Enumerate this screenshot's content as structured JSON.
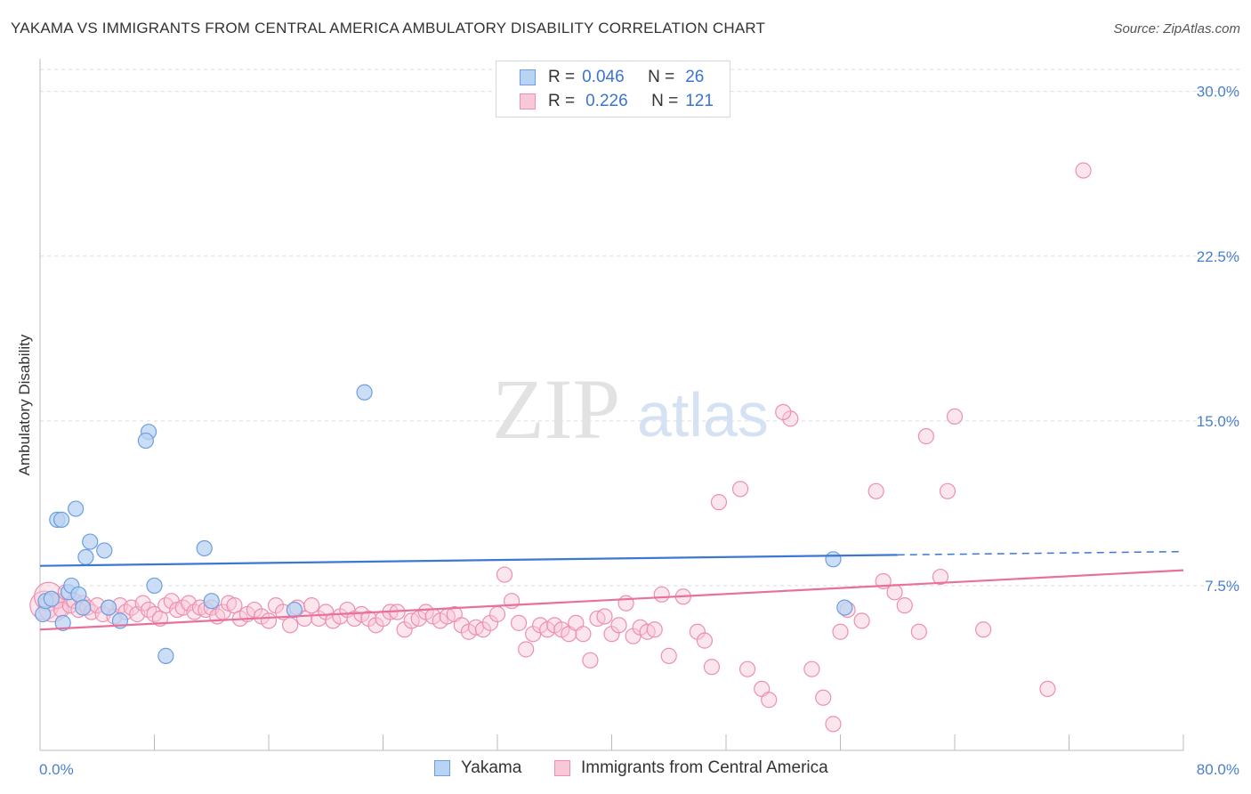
{
  "title": "YAKAMA VS IMMIGRANTS FROM CENTRAL AMERICA AMBULATORY DISABILITY CORRELATION CHART",
  "source": "Source: ZipAtlas.com",
  "watermark": {
    "zip": "ZIP",
    "atlas": "atlas"
  },
  "legend": {
    "rows": [
      {
        "r_label": "R =",
        "r_value": "0.046",
        "n_label": "N =",
        "n_value": "26"
      },
      {
        "r_label": "R =",
        "r_value": "0.226",
        "n_label": "N =",
        "n_value": "121"
      }
    ]
  },
  "colors": {
    "yakama_fill": "#b9d3f3",
    "yakama_stroke": "#6b9fe0",
    "yakama_line": "#3b78d4",
    "ica_fill": "#f8c8d8",
    "ica_stroke": "#ee8fb0",
    "ica_line": "#e8709a",
    "axis_text": "#4a7fd0",
    "grid": "#dddddd"
  },
  "chart_data": {
    "type": "scatter",
    "title": "YAKAMA VS IMMIGRANTS FROM CENTRAL AMERICA AMBULATORY DISABILITY CORRELATION CHART",
    "xlabel": "",
    "ylabel": "Ambulatory Disability",
    "xlim": [
      0,
      80
    ],
    "ylim": [
      0,
      31
    ],
    "x_tick_labels": [
      "0.0%",
      "80.0%"
    ],
    "y_ticks": [
      7.5,
      15.0,
      22.5,
      30.0
    ],
    "y_tick_labels": [
      "7.5%",
      "15.0%",
      "22.5%",
      "30.0%"
    ],
    "grid": "horizontal dashed",
    "legend_position": "top-center",
    "series": [
      {
        "name": "Yakama",
        "trend": {
          "x0": 0,
          "y0": 8.4,
          "x1": 60,
          "y1": 8.9,
          "dashed_to": 80,
          "dashed_y": 9.05
        },
        "points": [
          [
            0.2,
            6.2
          ],
          [
            0.4,
            6.8
          ],
          [
            0.8,
            6.9
          ],
          [
            1.2,
            10.5
          ],
          [
            1.5,
            10.5
          ],
          [
            2.5,
            11.0
          ],
          [
            2.0,
            7.2
          ],
          [
            2.2,
            7.5
          ],
          [
            2.7,
            7.1
          ],
          [
            1.6,
            5.8
          ],
          [
            3.2,
            8.8
          ],
          [
            3.5,
            9.5
          ],
          [
            4.5,
            9.1
          ],
          [
            4.8,
            6.5
          ],
          [
            5.6,
            5.9
          ],
          [
            7.6,
            14.5
          ],
          [
            7.4,
            14.1
          ],
          [
            8.0,
            7.5
          ],
          [
            8.8,
            4.3
          ],
          [
            11.5,
            9.2
          ],
          [
            12.0,
            6.8
          ],
          [
            17.8,
            6.4
          ],
          [
            22.7,
            16.3
          ],
          [
            55.5,
            8.7
          ],
          [
            56.3,
            6.5
          ],
          [
            3.0,
            6.5
          ]
        ]
      },
      {
        "name": "Immigrants from Central America",
        "trend": {
          "x0": 0,
          "y0": 5.5,
          "x1": 80,
          "y1": 8.2
        },
        "points": [
          [
            0.3,
            6.6
          ],
          [
            0.6,
            7.0
          ],
          [
            0.9,
            6.5
          ],
          [
            1.2,
            6.8
          ],
          [
            1.5,
            6.4
          ],
          [
            1.8,
            7.2
          ],
          [
            2.1,
            6.6
          ],
          [
            2.4,
            6.8
          ],
          [
            2.7,
            6.4
          ],
          [
            3.0,
            6.7
          ],
          [
            3.3,
            6.5
          ],
          [
            3.6,
            6.3
          ],
          [
            4.0,
            6.6
          ],
          [
            4.4,
            6.2
          ],
          [
            4.8,
            6.5
          ],
          [
            5.2,
            6.1
          ],
          [
            5.6,
            6.6
          ],
          [
            6.0,
            6.3
          ],
          [
            6.4,
            6.5
          ],
          [
            6.8,
            6.2
          ],
          [
            7.2,
            6.7
          ],
          [
            7.6,
            6.4
          ],
          [
            8.0,
            6.2
          ],
          [
            8.4,
            6.0
          ],
          [
            8.8,
            6.6
          ],
          [
            9.2,
            6.8
          ],
          [
            9.6,
            6.4
          ],
          [
            10.0,
            6.5
          ],
          [
            10.4,
            6.7
          ],
          [
            10.8,
            6.3
          ],
          [
            11.2,
            6.5
          ],
          [
            11.6,
            6.4
          ],
          [
            12.0,
            6.5
          ],
          [
            12.4,
            6.1
          ],
          [
            12.8,
            6.3
          ],
          [
            13.2,
            6.7
          ],
          [
            13.6,
            6.6
          ],
          [
            14.0,
            6.0
          ],
          [
            14.5,
            6.2
          ],
          [
            15.0,
            6.4
          ],
          [
            15.5,
            6.1
          ],
          [
            16.0,
            5.9
          ],
          [
            16.5,
            6.6
          ],
          [
            17.0,
            6.3
          ],
          [
            17.5,
            5.7
          ],
          [
            18.0,
            6.5
          ],
          [
            18.5,
            6.0
          ],
          [
            19.0,
            6.6
          ],
          [
            19.5,
            6.0
          ],
          [
            20.0,
            6.3
          ],
          [
            20.5,
            5.9
          ],
          [
            21.0,
            6.1
          ],
          [
            21.5,
            6.4
          ],
          [
            22.0,
            6.0
          ],
          [
            22.5,
            6.2
          ],
          [
            23.0,
            6.0
          ],
          [
            23.5,
            5.7
          ],
          [
            24.0,
            6.0
          ],
          [
            24.5,
            6.3
          ],
          [
            25.0,
            6.3
          ],
          [
            25.5,
            5.5
          ],
          [
            26.0,
            5.9
          ],
          [
            26.5,
            6.0
          ],
          [
            27.0,
            6.3
          ],
          [
            27.5,
            6.1
          ],
          [
            28.0,
            5.9
          ],
          [
            28.5,
            6.1
          ],
          [
            29.0,
            6.2
          ],
          [
            29.5,
            5.7
          ],
          [
            30.0,
            5.4
          ],
          [
            30.5,
            5.6
          ],
          [
            31.0,
            5.5
          ],
          [
            31.5,
            5.8
          ],
          [
            32.0,
            6.2
          ],
          [
            32.5,
            8.0
          ],
          [
            33.0,
            6.8
          ],
          [
            33.5,
            5.8
          ],
          [
            34.0,
            4.6
          ],
          [
            34.5,
            5.3
          ],
          [
            35.0,
            5.7
          ],
          [
            35.5,
            5.5
          ],
          [
            36.0,
            5.7
          ],
          [
            36.5,
            5.5
          ],
          [
            37.0,
            5.3
          ],
          [
            37.5,
            5.8
          ],
          [
            38.0,
            5.3
          ],
          [
            38.5,
            4.1
          ],
          [
            39.0,
            6.0
          ],
          [
            39.5,
            6.1
          ],
          [
            40.0,
            5.3
          ],
          [
            40.5,
            5.7
          ],
          [
            41.0,
            6.7
          ],
          [
            41.5,
            5.2
          ],
          [
            42.0,
            5.6
          ],
          [
            42.5,
            5.4
          ],
          [
            43.0,
            5.5
          ],
          [
            43.5,
            7.1
          ],
          [
            44.0,
            4.3
          ],
          [
            45.0,
            7.0
          ],
          [
            46.0,
            5.4
          ],
          [
            46.5,
            5.0
          ],
          [
            47.0,
            3.8
          ],
          [
            47.5,
            11.3
          ],
          [
            49.0,
            11.9
          ],
          [
            49.5,
            3.7
          ],
          [
            50.5,
            2.8
          ],
          [
            51.0,
            2.3
          ],
          [
            52.5,
            15.1
          ],
          [
            52.0,
            15.4
          ],
          [
            54.0,
            3.7
          ],
          [
            54.8,
            2.4
          ],
          [
            55.5,
            1.2
          ],
          [
            56.5,
            6.4
          ],
          [
            57.5,
            5.9
          ],
          [
            58.5,
            11.8
          ],
          [
            59.0,
            7.7
          ],
          [
            59.8,
            7.2
          ],
          [
            60.5,
            6.6
          ],
          [
            61.5,
            5.4
          ],
          [
            62.0,
            14.3
          ],
          [
            63.0,
            7.9
          ],
          [
            63.5,
            11.8
          ],
          [
            64.0,
            15.2
          ],
          [
            66.0,
            5.5
          ],
          [
            70.5,
            2.8
          ],
          [
            73.0,
            26.4
          ],
          [
            56.0,
            5.4
          ]
        ]
      }
    ]
  },
  "axis": {
    "ylabel": "Ambulatory Disability",
    "x_min_label": "0.0%",
    "x_max_label": "80.0%"
  },
  "bottom_legend": [
    {
      "label": "Yakama"
    },
    {
      "label": "Immigrants from Central America"
    }
  ]
}
